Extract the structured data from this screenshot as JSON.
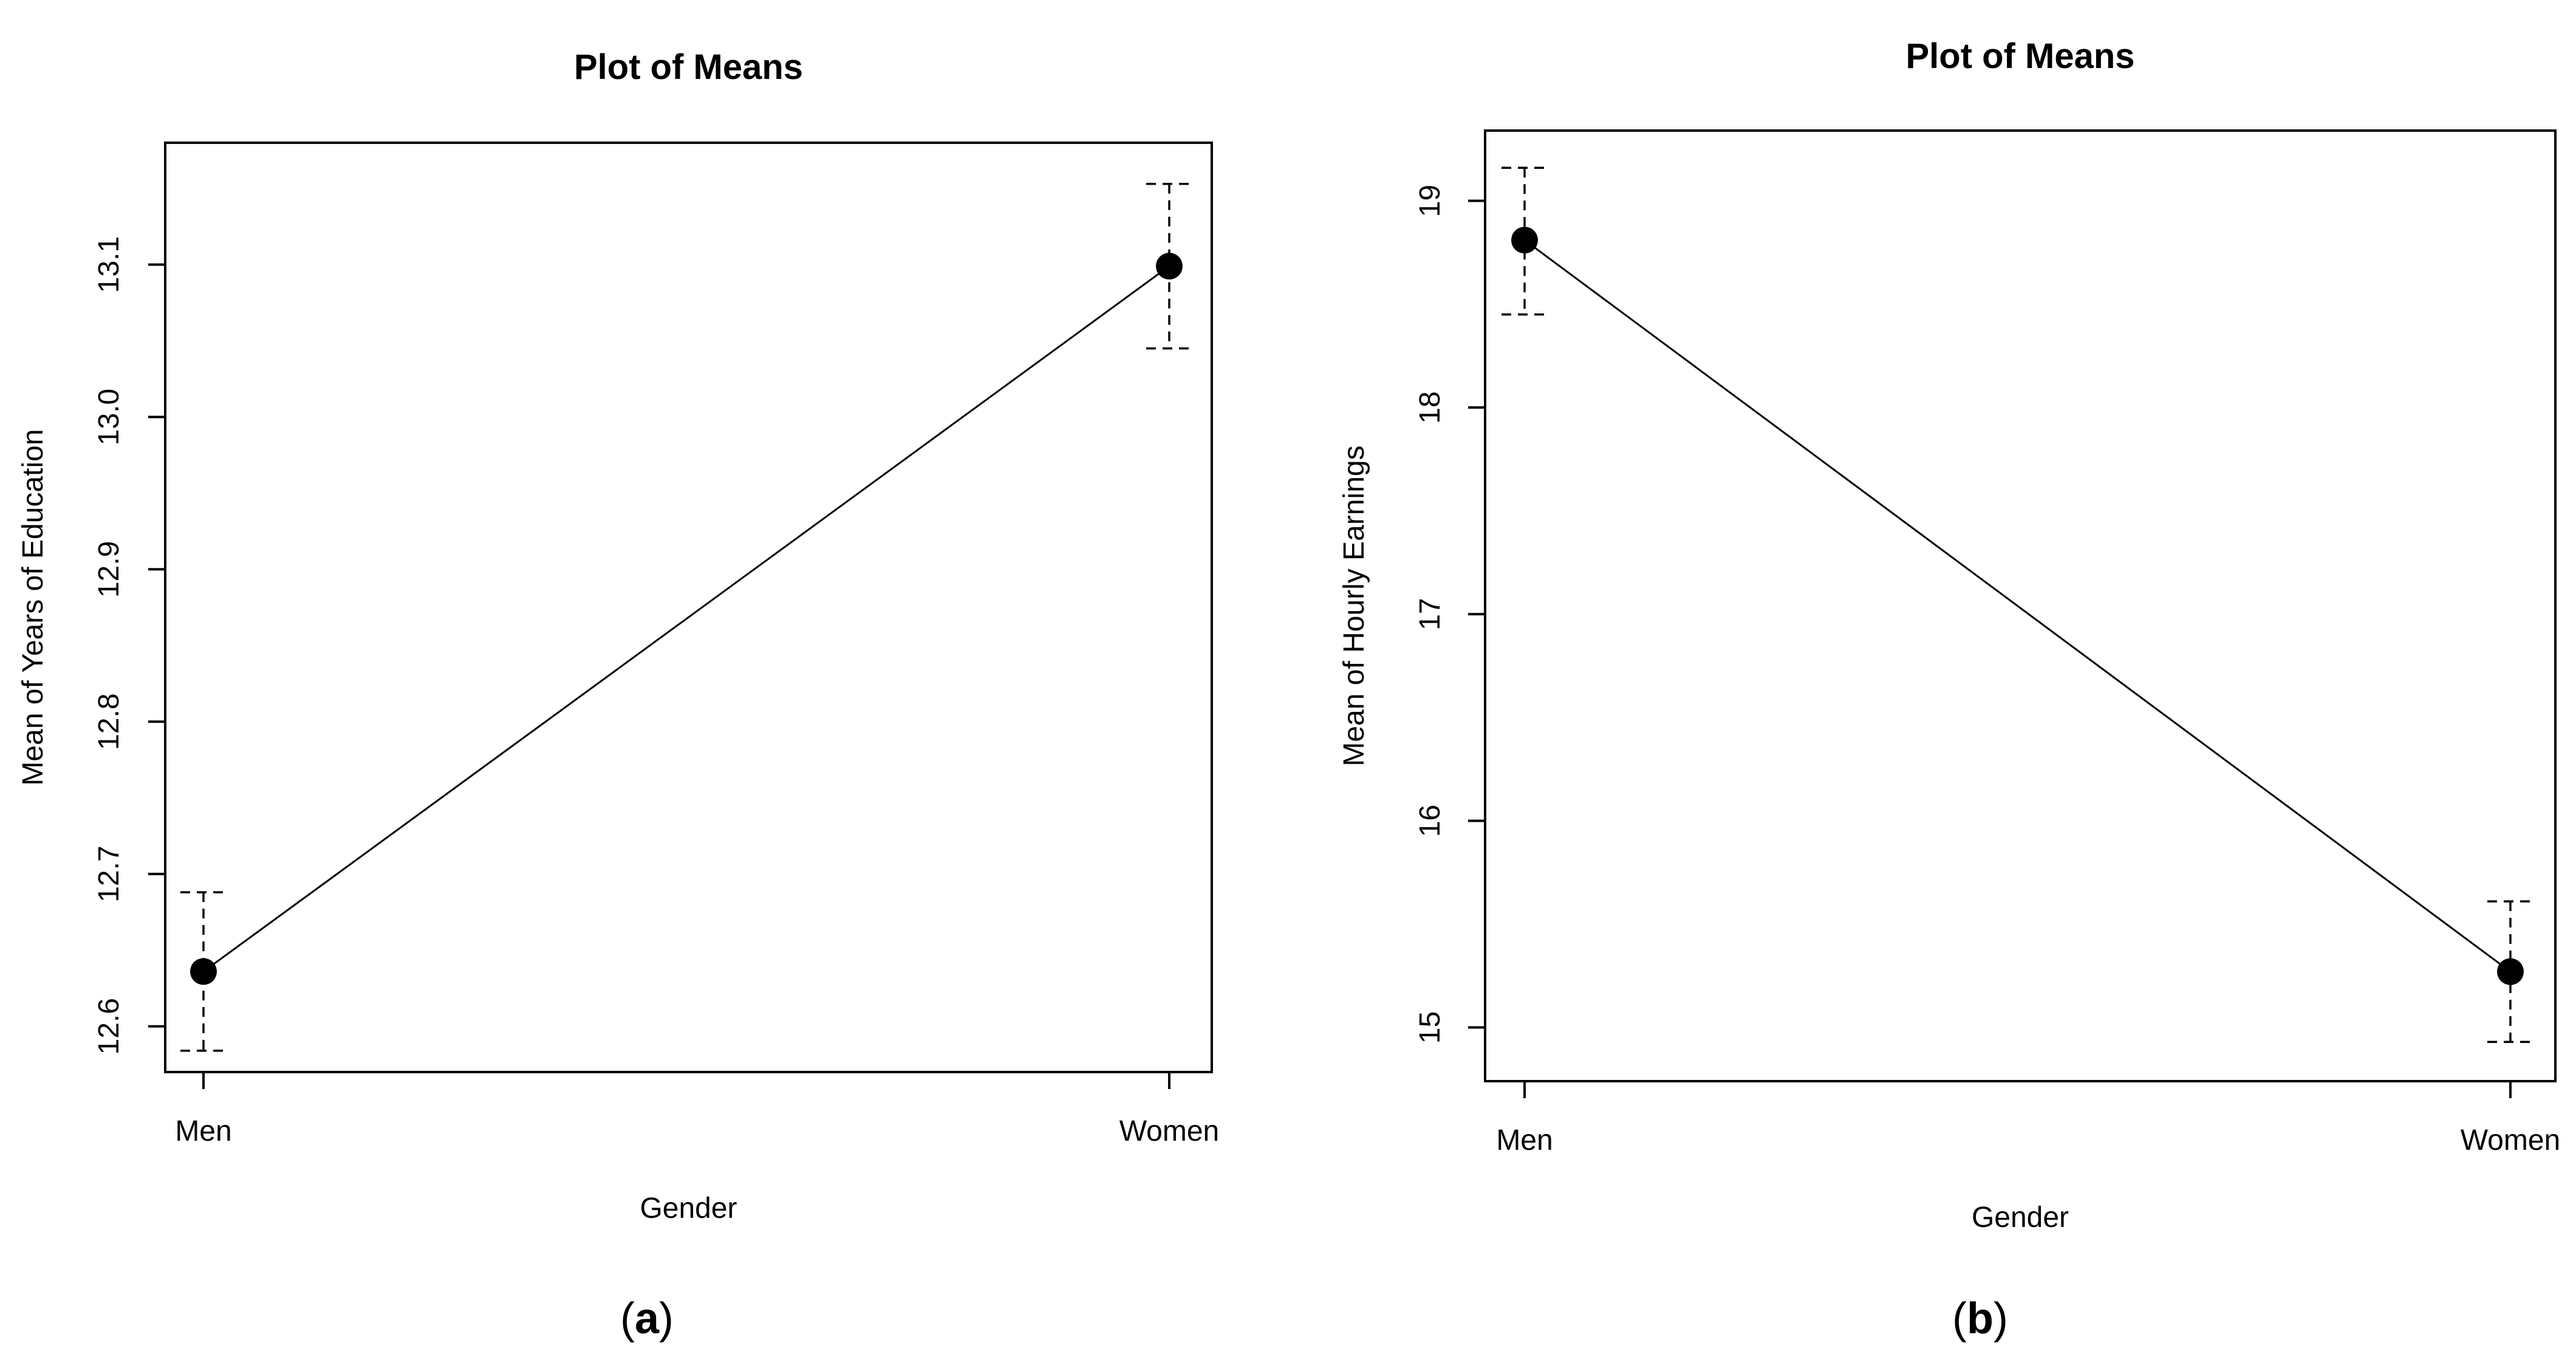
{
  "chart_data": [
    {
      "panel": "(a)",
      "panel_letter": "a",
      "type": "line",
      "title": "Plot of Means",
      "xlabel": "Gender",
      "ylabel": "Mean of Years of Education",
      "categories": [
        "Men",
        "Women"
      ],
      "series": [
        {
          "values": [
            12.636,
            13.099
          ],
          "error_low": [
            12.584,
            13.045
          ],
          "error_high": [
            12.688,
            13.153
          ]
        }
      ],
      "ylim": [
        12.57,
        13.18
      ],
      "yticks": [
        12.6,
        12.7,
        12.8,
        12.9,
        13.0,
        13.1
      ],
      "ytick_labels": [
        "12.6",
        "12.7",
        "12.8",
        "12.9",
        "13.0",
        "13.1"
      ],
      "grid": false,
      "error_bar_style": "dashed"
    },
    {
      "panel": "(b)",
      "panel_letter": "b",
      "type": "line",
      "title": "Plot of Means",
      "xlabel": "Gender",
      "ylabel": "Mean of Hourly Earnings",
      "categories": [
        "Men",
        "Women"
      ],
      "series": [
        {
          "values": [
            18.81,
            15.27
          ],
          "error_low": [
            18.45,
            14.93
          ],
          "error_high": [
            19.16,
            15.61
          ]
        }
      ],
      "ylim": [
        14.74,
        19.34
      ],
      "yticks": [
        15,
        16,
        17,
        18,
        19
      ],
      "ytick_labels": [
        "15",
        "16",
        "17",
        "18",
        "19"
      ],
      "grid": false,
      "error_bar_style": "dashed"
    }
  ]
}
